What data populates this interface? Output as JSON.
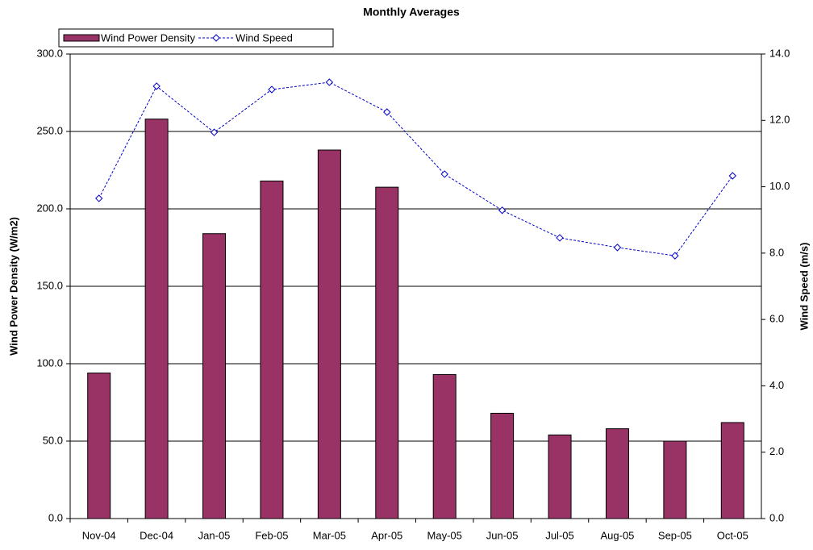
{
  "chart_data": {
    "type": "bar",
    "title": "Monthly Averages",
    "categories": [
      "Nov-04",
      "Dec-04",
      "Jan-05",
      "Feb-05",
      "Mar-05",
      "Apr-05",
      "May-05",
      "Jun-05",
      "Jul-05",
      "Aug-05",
      "Sep-05",
      "Oct-05"
    ],
    "series": [
      {
        "name": "Wind Power Density",
        "type": "bar",
        "color": "#993366",
        "values": [
          94,
          258,
          184,
          218,
          238,
          214,
          93,
          68,
          54,
          58,
          50,
          62
        ]
      },
      {
        "name": "Wind Speed",
        "type": "line",
        "color": "#0000cc",
        "axis": "y2",
        "values": [
          9.65,
          13.03,
          11.64,
          12.93,
          13.15,
          12.25,
          10.38,
          9.29,
          8.46,
          8.17,
          7.92,
          10.33
        ]
      }
    ],
    "y_label": "Wind Power Density (W/m2)",
    "y2_label": "Wind Speed (m/s)",
    "ylim": [
      0,
      300
    ],
    "yticks": [
      {
        "value": 0,
        "label": "0.0"
      },
      {
        "value": 50,
        "label": "50.0"
      },
      {
        "value": 100,
        "label": "100.0"
      },
      {
        "value": 150,
        "label": "150.0"
      },
      {
        "value": 200,
        "label": "200.0"
      },
      {
        "value": 250,
        "label": "250.0"
      },
      {
        "value": 300,
        "label": "300.0"
      }
    ],
    "y2lim": [
      0,
      14
    ],
    "y2ticks": [
      {
        "value": 0,
        "label": "0.0"
      },
      {
        "value": 2,
        "label": "2.0"
      },
      {
        "value": 4,
        "label": "4.0"
      },
      {
        "value": 6,
        "label": "6.0"
      },
      {
        "value": 8,
        "label": "8.0"
      },
      {
        "value": 10,
        "label": "10.0"
      },
      {
        "value": 12,
        "label": "12.0"
      },
      {
        "value": 14,
        "label": "14.0"
      }
    ],
    "grid": true,
    "legend": "upper left"
  }
}
